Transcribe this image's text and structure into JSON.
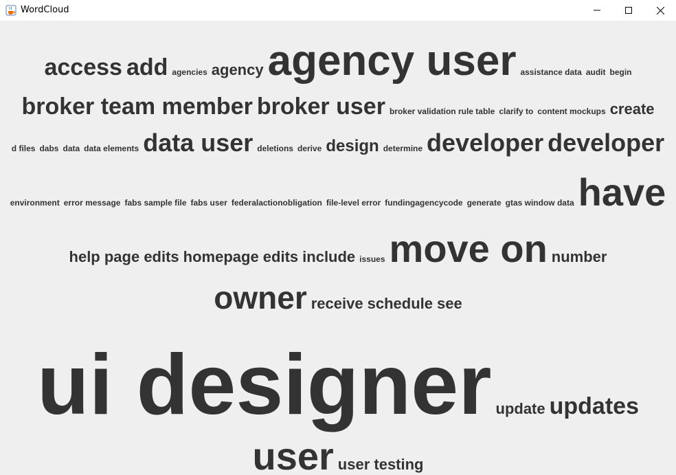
{
  "window": {
    "title": "WordCloud",
    "icons": {
      "app": "java-cup-icon",
      "minimize": "minimize-icon",
      "maximize": "maximize-icon",
      "close": "close-icon"
    }
  },
  "cloud": {
    "text_color": "#333333",
    "background": "#efefef",
    "rows": [
      [
        {
          "text": "access",
          "size": 34
        },
        {
          "text": "add",
          "size": 34
        },
        {
          "text": "agencies",
          "size": 12
        },
        {
          "text": "agency",
          "size": 22
        },
        {
          "text": "agency user",
          "size": 62
        },
        {
          "text": "assistance data",
          "size": 12
        },
        {
          "text": "audit",
          "size": 12
        },
        {
          "text": "begin",
          "size": 12
        }
      ],
      [
        {
          "text": "broker team member",
          "size": 34
        },
        {
          "text": "broker user",
          "size": 34
        },
        {
          "text": "broker validation rule table",
          "size": 12
        },
        {
          "text": "clarify to",
          "size": 12
        },
        {
          "text": "content mockups",
          "size": 12
        },
        {
          "text": "create",
          "size": 22
        }
      ],
      [
        {
          "text": "d files",
          "size": 12
        },
        {
          "text": "dabs",
          "size": 12
        },
        {
          "text": "data",
          "size": 12
        },
        {
          "text": "data elements",
          "size": 12
        },
        {
          "text": "data user",
          "size": 36
        },
        {
          "text": "deletions",
          "size": 12
        },
        {
          "text": "derive",
          "size": 12
        },
        {
          "text": "design",
          "size": 24
        },
        {
          "text": "determine",
          "size": 12
        },
        {
          "text": "developer",
          "size": 36
        },
        {
          "text": "developer",
          "size": 36
        }
      ],
      [
        {
          "text": "environment",
          "size": 12
        },
        {
          "text": "error message",
          "size": 12
        },
        {
          "text": "fabs sample file",
          "size": 12
        },
        {
          "text": "fabs user",
          "size": 12
        },
        {
          "text": "federalactionobligation",
          "size": 12
        },
        {
          "text": "file-level error",
          "size": 12
        },
        {
          "text": "fundingagencycode",
          "size": 12
        },
        {
          "text": "generate",
          "size": 12
        },
        {
          "text": "gtas window data",
          "size": 12
        },
        {
          "text": "have",
          "size": 56
        }
      ],
      [
        {
          "text": "help page edits",
          "size": 22
        },
        {
          "text": "homepage edits",
          "size": 22
        },
        {
          "text": "include",
          "size": 22
        },
        {
          "text": "issues",
          "size": 12
        },
        {
          "text": "move on",
          "size": 56
        },
        {
          "text": "number",
          "size": 22
        }
      ],
      [
        {
          "text": "owner",
          "size": 46
        },
        {
          "text": "receive",
          "size": 22
        },
        {
          "text": "schedule",
          "size": 22
        },
        {
          "text": "see",
          "size": 22
        }
      ],
      [
        {
          "text": "ui designer",
          "size": 124
        },
        {
          "text": "update",
          "size": 22
        },
        {
          "text": "updates",
          "size": 34
        }
      ],
      [
        {
          "text": "user",
          "size": 56
        },
        {
          "text": "user testing",
          "size": 22
        }
      ]
    ]
  }
}
